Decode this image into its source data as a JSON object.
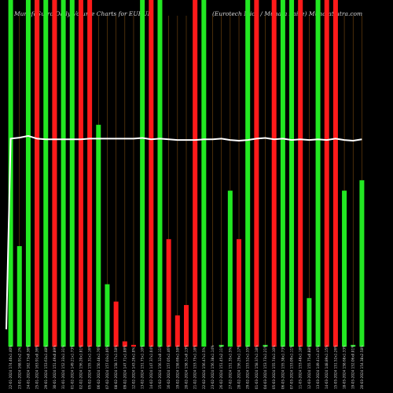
{
  "chart_data": {
    "type": "bar",
    "title": "MunafaSutra Daily Volume Charts for EURUN",
    "subtitle": "(Eurotech Mica / Munafa Paise) MunafaSutra.com",
    "colors": {
      "up": "#22e822",
      "down": "#ff1a1a",
      "line": "#ffffff",
      "grid": "#7a4a10",
      "background": "#000000"
    },
    "ylim": [
      0,
      100
    ],
    "categories": [
      "22-01-2024 174.40x1.40%",
      "23-01-2024 168.91x2.1%",
      "24-01-2024 162.73x0.36%",
      "25-01-2024 163.91x0.36%",
      "29-01-2024 153.63x1.48%",
      "30-01-2024 151.49x0.89%",
      "31-01-2024 152.33x1.31%",
      "01-02-2024 149.21x1.73%",
      "02-02-2024 156.20x1.81%",
      "05-02-2024 155.31x1.16%",
      "06-02-2024 150.48x1.76%",
      "07-02-2024 157.03x1.06%",
      "08-02-2024 158.77x1.58%",
      "09-02-2024 147.71x1.08%",
      "12-02-2024 143.26x1.0%",
      "13-02-2024 151.75x1.10%",
      "14-02-2024 147.37x1.04%",
      "15-02-2024 156.32x0.11%",
      "16-02-2024 157.05x1.46%",
      "19-02-2024 158.69x1.58%",
      "20-02-2024 158.31x0.13%",
      "21-02-2024 153.75x1.18%",
      "22-02-2024 156.47x1.5%",
      "23-02-2024 156.38x1.14%",
      "26-02-2024 151.45x2.11%",
      "27-02-2024 151.35x1.5%",
      "28-02-2024 156.29x1.17%",
      "29-02-2024 153.52x1.35%",
      "01-03-2024 158.37x1.18%",
      "04-03-2024 153.73x1.21%",
      "05-03-2024 155.74x1.10%",
      "06-03-2024 155.38x1.73%",
      "07-03-2024 153.09x1.11%",
      "11-03-2024 153.48x1.18%",
      "12-03-2024 155.75x0.88%",
      "13-03-2024 149.41x1.45%",
      "14-03-2024 148.89x1.15%",
      "15-03-2024 151.52x1.26%",
      "18-03-2024 158.68x1.33%",
      "19-03-2024 152.06x0.01%",
      "20-03-2024 154.38x2.58%"
    ],
    "series": [
      {
        "role": "volume-up",
        "values": [
          100,
          29,
          100,
          100,
          100,
          100,
          100,
          100,
          null,
          null,
          64,
          18,
          null,
          null,
          null,
          100,
          null,
          100,
          null,
          null,
          null,
          null,
          100,
          null,
          0.5,
          45,
          null,
          100,
          null,
          0.5,
          null,
          100,
          100,
          null,
          14,
          100,
          null,
          null,
          45,
          0.5,
          48
        ]
      },
      {
        "role": "volume-down",
        "values": [
          null,
          null,
          null,
          100,
          null,
          100,
          null,
          null,
          100,
          100,
          null,
          null,
          13,
          1.5,
          0.5,
          null,
          100,
          null,
          31,
          9,
          12,
          100,
          null,
          null,
          null,
          null,
          31,
          null,
          100,
          null,
          100,
          null,
          null,
          100,
          null,
          null,
          100,
          100,
          null,
          null,
          null
        ]
      },
      {
        "role": "price-line",
        "values": [
          60,
          60.3,
          60.8,
          60.0,
          59.8,
          59.8,
          59.8,
          59.8,
          59.8,
          60.0,
          60.0,
          60.0,
          60.0,
          60.0,
          60.0,
          60.2,
          59.8,
          60.0,
          59.8,
          59.6,
          59.6,
          59.6,
          59.8,
          59.8,
          60.0,
          59.6,
          59.4,
          59.6,
          60.0,
          60.2,
          59.8,
          60.0,
          59.6,
          59.8,
          59.6,
          59.8,
          59.6,
          60.0,
          59.6,
          59.4,
          59.8
        ]
      }
    ],
    "grid": true
  }
}
